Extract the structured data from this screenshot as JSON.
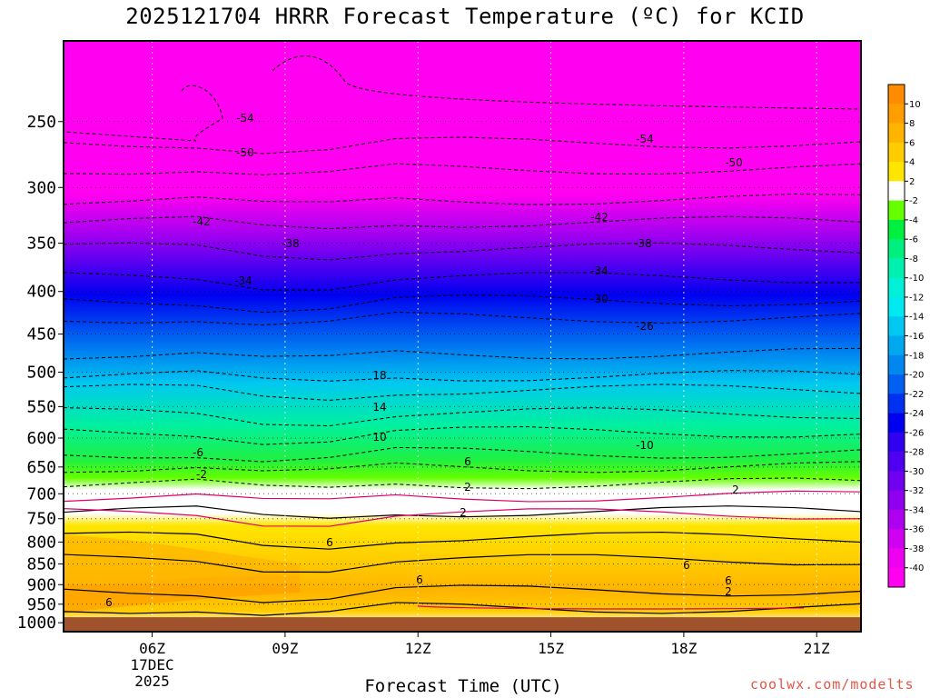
{
  "chart_data": {
    "type": "heatmap",
    "title": "2025121704 HRRR Forecast Temperature (ºC) for KCID",
    "xlabel": "Forecast Time (UTC)",
    "credit": "coolwx.com/modelts",
    "y_axis": {
      "label": "",
      "ticks": [
        250,
        300,
        350,
        400,
        450,
        500,
        550,
        600,
        650,
        700,
        750,
        800,
        850,
        900,
        950,
        1000
      ],
      "reversed": true,
      "range": [
        200,
        1025
      ]
    },
    "x_axis": {
      "ticks": [
        "06Z",
        "09Z",
        "12Z",
        "15Z",
        "18Z",
        "21Z"
      ],
      "tick_hours": [
        6,
        9,
        12,
        15,
        18,
        21
      ],
      "date_lines": [
        "17DEC",
        "2025"
      ],
      "range_hours": [
        4,
        22
      ]
    },
    "colorbar": {
      "unit": "ºC",
      "labels": [
        "10",
        "8",
        "6",
        "4",
        "2",
        "-2",
        "-4",
        "-6",
        "-8",
        "-10",
        "-12",
        "-14",
        "-16",
        "-18",
        "-20",
        "-22",
        "-24",
        "-26",
        "-28",
        "-30",
        "-32",
        "-34",
        "-36",
        "-38",
        "-40"
      ],
      "colors": [
        "#ff8c00",
        "#ff9e00",
        "#ffb400",
        "#ffcc00",
        "#ffe600",
        "#ffffff",
        "#66ff00",
        "#00f040",
        "#00f080",
        "#00f0b0",
        "#00f0d8",
        "#00e8f0",
        "#00c8f0",
        "#00a8f0",
        "#0088f0",
        "#0060f0",
        "#0030f0",
        "#0000f0",
        "#3000f0",
        "#5000f0",
        "#7000f0",
        "#9000f0",
        "#b000f0",
        "#d000f0",
        "#f000f0",
        "#ff00f0"
      ]
    },
    "levels_temperature": [
      {
        "p": 250,
        "t": -56
      },
      {
        "p": 300,
        "t": -50
      },
      {
        "p": 350,
        "t": -42
      },
      {
        "p": 400,
        "t": -34
      },
      {
        "p": 450,
        "t": -26
      },
      {
        "p": 500,
        "t": -20
      },
      {
        "p": 550,
        "t": -16
      },
      {
        "p": 600,
        "t": -12
      },
      {
        "p": 650,
        "t": -8
      },
      {
        "p": 700,
        "t": -3
      },
      {
        "p": 750,
        "t": 1
      },
      {
        "p": 800,
        "t": 4
      },
      {
        "p": 850,
        "t": 6
      },
      {
        "p": 900,
        "t": 7
      },
      {
        "p": 950,
        "t": 5
      },
      {
        "p": 1000,
        "t": 3
      }
    ],
    "contour_labels": [
      "-54",
      "-54",
      "-50",
      "-50",
      "-42",
      "-42",
      "-38",
      "-38",
      "-34",
      "-34",
      "-30",
      "-26",
      "18",
      "14",
      "10",
      "-10",
      "-6",
      "6",
      "-2",
      "2",
      "2",
      "2",
      "6",
      "6",
      "6",
      "6",
      "2",
      "6"
    ],
    "surface_color": "#a0522d",
    "grid": true
  }
}
